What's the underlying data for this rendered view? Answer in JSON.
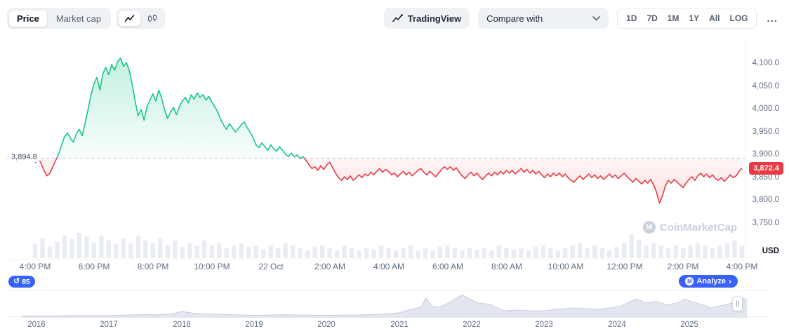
{
  "toolbar": {
    "price_label": "Price",
    "market_cap_label": "Market cap",
    "tradingview_label": "TradingView",
    "compare_label": "Compare with",
    "ranges": [
      "1D",
      "7D",
      "1M",
      "1Y",
      "All",
      "LOG"
    ],
    "more_label": "..."
  },
  "chart": {
    "baseline_label": "3,894.8",
    "current_price_label": "3,872.4",
    "y_axis_labels": [
      "4,100.0",
      "4,050.0",
      "4,000.0",
      "3,950.0",
      "3,900.0",
      "3,850.0",
      "3,800.0",
      "3,750.0"
    ],
    "y_axis_unit": "USD",
    "x_axis_labels": [
      "4:00 PM",
      "6:00 PM",
      "8:00 PM",
      "10:00 PM",
      "22 Oct",
      "2:00 AM",
      "4:00 AM",
      "6:00 AM",
      "8:00 AM",
      "10:00 AM",
      "12:00 PM",
      "2:00 PM",
      "4:00 PM"
    ],
    "watermark": "CoinMarketCap",
    "colors": {
      "up": "#16c784",
      "down": "#ea3943",
      "baseline": "#b6c0d1",
      "volume": "#e9edf3",
      "badge": "#ea3943",
      "accent": "#3861fb"
    }
  },
  "footer": {
    "badge_count": "85",
    "analyze_label": "Analyze",
    "years": [
      "2016",
      "2017",
      "2018",
      "2019",
      "2020",
      "2021",
      "2022",
      "2023",
      "2024",
      "2025"
    ]
  },
  "chart_data": [
    {
      "type": "line",
      "title": "Price (USD), 1D range, 4:00 PM to 4:00 PM next day",
      "baseline": 3894.8,
      "last_price": 3872.4,
      "ylim": [
        3750,
        4100
      ],
      "y_ticks": [
        3750,
        3800,
        3850,
        3900,
        3950,
        4000,
        4050,
        4100
      ],
      "x_unit": "hours since 4:00 PM",
      "x_start": 0,
      "x_step": 0.1,
      "x_tick_labels": [
        "4:00 PM",
        "6:00 PM",
        "8:00 PM",
        "10:00 PM",
        "22 Oct",
        "2:00 AM",
        "4:00 AM",
        "6:00 AM",
        "8:00 AM",
        "10:00 AM",
        "12:00 PM",
        "2:00 PM",
        "4:00 PM"
      ],
      "price": [
        3884,
        3894,
        3884,
        3868,
        3856,
        3862,
        3876,
        3890,
        3904,
        3924,
        3942,
        3950,
        3938,
        3930,
        3948,
        3958,
        3944,
        3972,
        4002,
        4034,
        4058,
        4072,
        4044,
        4080,
        4094,
        4078,
        4100,
        4088,
        4106,
        4114,
        4096,
        4104,
        4086,
        4056,
        4018,
        3988,
        4002,
        3978,
        4008,
        4022,
        4036,
        4020,
        4044,
        4026,
        4000,
        3982,
        3996,
        4006,
        3990,
        4008,
        4020,
        4028,
        4016,
        4034,
        4024,
        4038,
        4028,
        4034,
        4022,
        4030,
        4018,
        4008,
        3996,
        3980,
        3968,
        3958,
        3970,
        3962,
        3952,
        3960,
        3968,
        3974,
        3962,
        3952,
        3940,
        3924,
        3918,
        3928,
        3920,
        3912,
        3924,
        3916,
        3910,
        3920,
        3912,
        3904,
        3898,
        3906,
        3898,
        3902,
        3894,
        3898,
        3890,
        3880,
        3872,
        3876,
        3868,
        3878,
        3870,
        3880,
        3886,
        3874,
        3862,
        3852,
        3846,
        3854,
        3848,
        3856,
        3846,
        3852,
        3858,
        3852,
        3860,
        3856,
        3864,
        3858,
        3866,
        3872,
        3864,
        3870,
        3866,
        3858,
        3862,
        3854,
        3860,
        3866,
        3858,
        3864,
        3856,
        3862,
        3868,
        3872,
        3864,
        3858,
        3866,
        3860,
        3854,
        3862,
        3870,
        3876,
        3870,
        3876,
        3868,
        3874,
        3864,
        3856,
        3850,
        3858,
        3864,
        3856,
        3862,
        3854,
        3848,
        3856,
        3862,
        3856,
        3864,
        3858,
        3866,
        3860,
        3868,
        3862,
        3868,
        3860,
        3866,
        3872,
        3864,
        3870,
        3862,
        3868,
        3860,
        3866,
        3858,
        3852,
        3860,
        3854,
        3862,
        3856,
        3862,
        3854,
        3860,
        3852,
        3846,
        3842,
        3850,
        3856,
        3848,
        3854,
        3860,
        3852,
        3858,
        3850,
        3856,
        3848,
        3854,
        3860,
        3852,
        3858,
        3850,
        3856,
        3862,
        3854,
        3848,
        3842,
        3850,
        3844,
        3838,
        3846,
        3840,
        3848,
        3836,
        3820,
        3796,
        3812,
        3834,
        3846,
        3840,
        3848,
        3842,
        3836,
        3830,
        3840,
        3848,
        3854,
        3846,
        3856,
        3862,
        3854,
        3860,
        3852,
        3858,
        3850,
        3846,
        3852,
        3844,
        3850,
        3858,
        3852,
        3856,
        3866,
        3872.4
      ],
      "volume_x_step": 0.25,
      "volume": [
        0.55,
        0.8,
        0.45,
        0.65,
        0.9,
        0.75,
        1.0,
        0.85,
        0.6,
        0.9,
        0.7,
        0.55,
        0.8,
        0.6,
        0.9,
        0.7,
        0.6,
        0.8,
        0.5,
        0.7,
        0.45,
        0.6,
        0.5,
        0.7,
        0.5,
        0.6,
        0.4,
        0.5,
        0.6,
        0.45,
        0.5,
        0.35,
        0.5,
        0.4,
        0.6,
        0.5,
        0.4,
        0.3,
        0.45,
        0.5,
        0.4,
        0.3,
        0.5,
        0.4,
        0.3,
        0.4,
        0.35,
        0.5,
        0.4,
        0.3,
        0.4,
        0.5,
        0.3,
        0.4,
        0.3,
        0.45,
        0.5,
        0.4,
        0.3,
        0.4,
        0.35,
        0.4,
        0.3,
        0.5,
        0.4,
        0.35,
        0.4,
        0.3,
        0.45,
        0.5,
        0.4,
        0.3,
        0.4,
        0.5,
        0.6,
        0.4,
        0.5,
        0.4,
        0.3,
        0.45,
        0.6,
        0.95,
        0.7,
        0.5,
        0.6,
        0.5,
        0.4,
        0.5,
        0.4,
        0.5,
        0.6,
        0.5,
        0.4,
        0.5,
        0.6,
        0.7,
        0.5
      ]
    },
    {
      "type": "area",
      "title": "All-time history navigator (relative price, 0-1 of ATH)",
      "x_years": [
        2015.8,
        2016.0,
        2016.3,
        2016.6,
        2016.9,
        2017.1,
        2017.3,
        2017.5,
        2017.7,
        2017.9,
        2018.0,
        2018.15,
        2018.3,
        2018.5,
        2018.7,
        2018.9,
        2019.1,
        2019.35,
        2019.6,
        2019.8,
        2020.0,
        2020.2,
        2020.45,
        2020.7,
        2020.9,
        2021.0,
        2021.1,
        2021.2,
        2021.3,
        2021.37,
        2021.45,
        2021.55,
        2021.65,
        2021.8,
        2021.87,
        2022.0,
        2022.1,
        2022.25,
        2022.45,
        2022.6,
        2022.75,
        2022.9,
        2023.05,
        2023.2,
        2023.4,
        2023.6,
        2023.75,
        2023.9,
        2024.05,
        2024.2,
        2024.28,
        2024.4,
        2024.55,
        2024.7,
        2024.85,
        2024.95,
        2025.05,
        2025.2,
        2025.3,
        2025.45,
        2025.6,
        2025.68,
        2025.78,
        2025.8
      ],
      "values": [
        0.01,
        0.01,
        0.01,
        0.02,
        0.02,
        0.03,
        0.05,
        0.07,
        0.06,
        0.12,
        0.22,
        0.14,
        0.1,
        0.09,
        0.06,
        0.04,
        0.03,
        0.06,
        0.05,
        0.04,
        0.03,
        0.04,
        0.05,
        0.08,
        0.12,
        0.15,
        0.26,
        0.34,
        0.42,
        0.86,
        0.48,
        0.42,
        0.55,
        0.88,
        1.0,
        0.76,
        0.62,
        0.55,
        0.24,
        0.28,
        0.26,
        0.24,
        0.26,
        0.33,
        0.38,
        0.34,
        0.32,
        0.38,
        0.46,
        0.7,
        0.82,
        0.62,
        0.7,
        0.52,
        0.64,
        0.8,
        0.66,
        0.52,
        0.38,
        0.5,
        0.62,
        0.9,
        0.8,
        0.79
      ]
    }
  ]
}
